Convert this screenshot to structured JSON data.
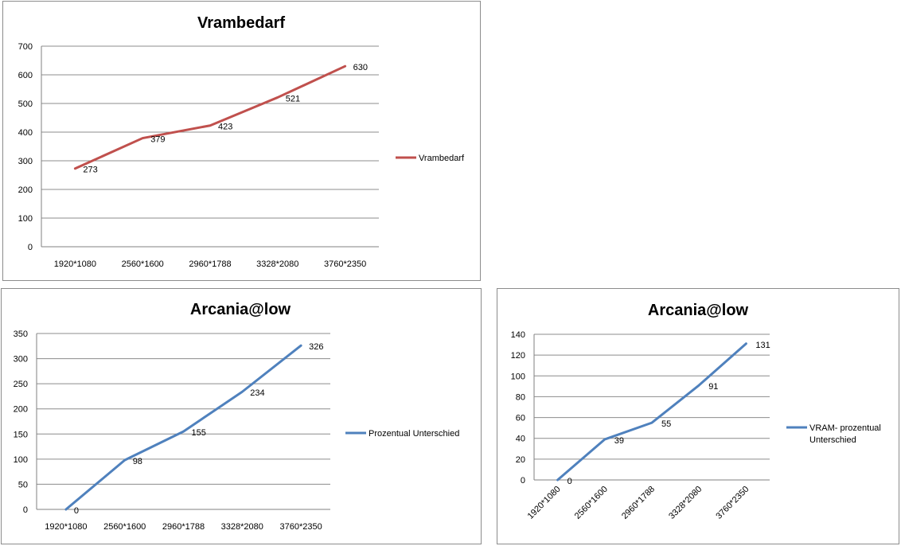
{
  "chart_data": [
    {
      "type": "line",
      "title": "Vrambedarf",
      "categories": [
        "1920*1080",
        "2560*1600",
        "2960*1788",
        "3328*2080",
        "3760*2350"
      ],
      "series": [
        {
          "name": "Vrambedarf",
          "values": [
            273,
            379,
            423,
            521,
            630
          ],
          "color": "#c0504d"
        }
      ],
      "ylim": [
        0,
        700
      ],
      "yticks": [
        0,
        100,
        200,
        300,
        400,
        500,
        600,
        700
      ],
      "grid": true,
      "legend": "right",
      "xlabel_rotation": 0
    },
    {
      "type": "line",
      "title": "Arcania@low",
      "categories": [
        "1920*1080",
        "2560*1600",
        "2960*1788",
        "3328*2080",
        "3760*2350"
      ],
      "series": [
        {
          "name": "Prozentual Unterschied",
          "values": [
            0,
            98,
            155,
            234,
            326
          ],
          "color": "#4f81bd"
        }
      ],
      "ylim": [
        0,
        350
      ],
      "yticks": [
        0,
        50,
        100,
        150,
        200,
        250,
        300,
        350
      ],
      "grid": true,
      "legend": "right",
      "xlabel_rotation": 0
    },
    {
      "type": "line",
      "title": "Arcania@low",
      "categories": [
        "1920*1080",
        "2560*1600",
        "2960*1788",
        "3328*2080",
        "3760*2350"
      ],
      "series": [
        {
          "name": "VRAM- prozentual Unterschied",
          "name_lines": [
            "VRAM- prozentual",
            "Unterschied"
          ],
          "values": [
            0,
            39,
            55,
            91,
            131
          ],
          "color": "#4f81bd"
        }
      ],
      "ylim": [
        0,
        140
      ],
      "yticks": [
        0,
        20,
        40,
        60,
        80,
        100,
        120,
        140
      ],
      "grid": true,
      "legend": "right",
      "xlabel_rotation": -45
    }
  ]
}
